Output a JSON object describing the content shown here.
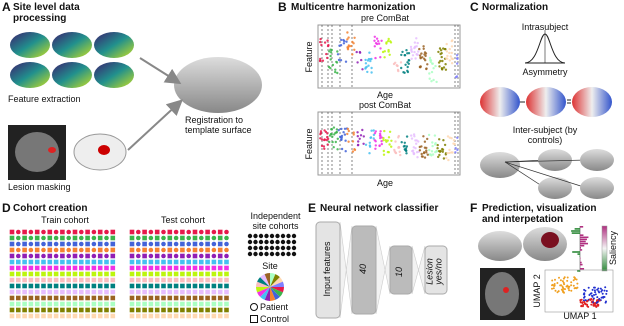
{
  "panels": {
    "a": {
      "letter": "A",
      "title": "Site level data processing",
      "feature_extraction": "Feature extraction",
      "lesion_masking": "Lesion masking",
      "registration": "Registration to template surface"
    },
    "b": {
      "letter": "B",
      "title": "Multicentre harmonization",
      "pre": {
        "title": "pre ComBat",
        "y_label": "Feature",
        "x_label": "Age"
      },
      "post": {
        "title": "post ComBat",
        "y_label": "Feature",
        "x_label": "Age"
      }
    },
    "c": {
      "letter": "C",
      "title": "Normalization",
      "intrasubject": "Intrasubject",
      "asymmetry": "Asymmetry",
      "intersubject": "Inter-subject (by controls)"
    },
    "d": {
      "letter": "D",
      "title": "Cohort creation",
      "train": "Train cohort",
      "test": "Test cohort",
      "independent": "Independent site cohorts",
      "site": "Site",
      "patient": "Patient",
      "control": "Control"
    },
    "e": {
      "letter": "E",
      "title": "Neural network classifier",
      "layers": [
        "Input features",
        40,
        10,
        "Lesion yes/no"
      ]
    },
    "f": {
      "letter": "F",
      "title": "Prediction, visualization and interpetation",
      "saliency": "Saliency",
      "umap_y": "UMAP 2",
      "umap_x": "UMAP 1"
    }
  }
}
